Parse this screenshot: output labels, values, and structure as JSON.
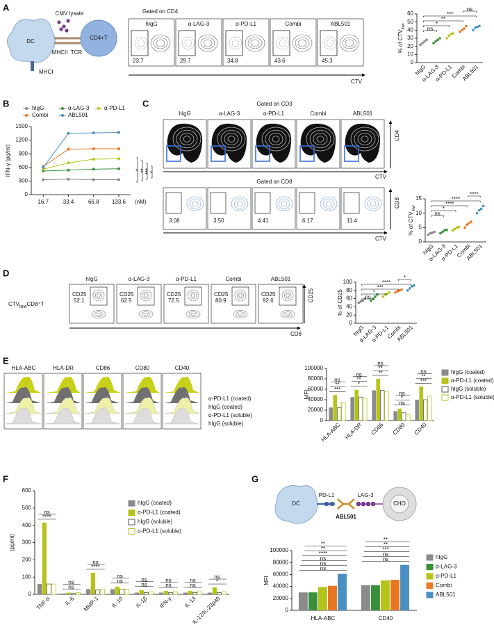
{
  "chart_data": [
    {
      "type": "dot",
      "ylabel": "% of CTV",
      "ylabel_sub": "low",
      "categories": [
        "hIgG",
        "α-LAG-3",
        "α-PD-L1",
        "Combi",
        "ABL501"
      ],
      "values": [
        [
          22,
          24,
          26,
          28
        ],
        [
          24,
          26,
          28,
          30
        ],
        [
          30,
          33,
          35,
          36
        ],
        [
          38,
          40,
          42,
          45
        ],
        [
          40,
          43,
          44,
          45
        ]
      ],
      "colors": [
        "#8a8a8a",
        "#3a8f3a",
        "#b5c41a",
        "#e87722",
        "#4a8fc1"
      ],
      "ylim": [
        0,
        60
      ],
      "yticks": [
        0,
        10,
        20,
        30,
        40,
        50,
        60
      ],
      "annotations": [
        "ns",
        "*",
        "**",
        "***",
        "ns"
      ]
    },
    {
      "type": "line",
      "ylabel": "IFN-γ (pg/ml)",
      "x_unit": "(nM)",
      "x": [
        16.7,
        33.4,
        66.8,
        133.6
      ],
      "xlim": [
        12,
        185
      ],
      "xticks": [
        16.7,
        33.4,
        66.8,
        133.6
      ],
      "xlog": true,
      "ylim": [
        0,
        1500
      ],
      "yticks": [
        0,
        300,
        600,
        900,
        1200,
        1500
      ],
      "series": [
        {
          "name": "hIgG",
          "color": "#8a8a8a",
          "values": [
            330,
            340,
            330,
            330
          ]
        },
        {
          "name": "α-LAG-3",
          "color": "#3a8f3a",
          "values": [
            520,
            540,
            560,
            570
          ]
        },
        {
          "name": "α-PD-L1",
          "color": "#b5c41a",
          "values": [
            560,
            700,
            780,
            790
          ]
        },
        {
          "name": "Combi",
          "color": "#e87722",
          "values": [
            620,
            1000,
            1010,
            1010
          ]
        },
        {
          "name": "ABL501",
          "color": "#4a8fc1",
          "values": [
            600,
            1350,
            1360,
            1370
          ]
        }
      ],
      "annotations": [
        "*",
        "**",
        "***",
        "*"
      ]
    },
    {
      "type": "dot",
      "ylabel": "% of CTV",
      "ylabel_sub": "low",
      "categories": [
        "hIgG",
        "α-LAG-3",
        "α-PD-L1",
        "Combi",
        "ABL501"
      ],
      "values": [
        [
          2.5,
          3,
          3.2,
          3.5
        ],
        [
          3,
          3.5,
          4,
          4.2
        ],
        [
          4,
          4.5,
          5,
          5.2
        ],
        [
          5,
          6,
          6.5,
          7
        ],
        [
          10,
          11,
          11.5,
          12.5
        ]
      ],
      "colors": [
        "#8a8a8a",
        "#3a8f3a",
        "#b5c41a",
        "#e87722",
        "#4a8fc1"
      ],
      "ylim": [
        0,
        15
      ],
      "yticks": [
        0,
        5,
        10,
        15
      ],
      "annotations": [
        "ns",
        "*",
        "****",
        "****",
        "****"
      ]
    },
    {
      "type": "dot",
      "ylabel": "% of CD25",
      "categories": [
        "hIgG",
        "α-LAG-3",
        "α-PD-L1",
        "Combi",
        "ABL501"
      ],
      "values": [
        [
          50,
          53,
          55,
          60
        ],
        [
          55,
          60,
          65,
          70
        ],
        [
          65,
          70,
          72,
          75
        ],
        [
          75,
          78,
          80,
          82
        ],
        [
          80,
          85,
          90,
          92
        ]
      ],
      "colors": [
        "#8a8a8a",
        "#3a8f3a",
        "#b5c41a",
        "#e87722",
        "#4a8fc1"
      ],
      "ylim": [
        0,
        100
      ],
      "yticks": [
        0,
        20,
        40,
        60,
        80,
        100
      ],
      "annotations": [
        "ns",
        "*",
        "***",
        "****",
        "*"
      ]
    },
    {
      "type": "bar",
      "ylabel": "MFI",
      "categories": [
        "HLA-ABC",
        "HLA-DR",
        "CD86",
        "CD80",
        "CD40"
      ],
      "ylim": [
        0,
        100000
      ],
      "yticks": [
        0,
        20000,
        40000,
        60000,
        80000,
        100000
      ],
      "series": [
        {
          "name": "hIgG (coated)",
          "color": "#8a8a8a",
          "values": [
            25000,
            45000,
            58000,
            18000,
            40000
          ]
        },
        {
          "name": "α-PD-L1 (coated)",
          "color": "#b5c41a",
          "values": [
            49000,
            59000,
            80000,
            23000,
            65000
          ]
        },
        {
          "name": "hIgG (soluble)",
          "color": "#ffffff",
          "edgecolor": "#555555",
          "values": [
            25000,
            45000,
            58000,
            15000,
            40000
          ]
        },
        {
          "name": "α-PD-L1 (soluble)",
          "color": "#ffffff",
          "edgecolor": "#b5c41a",
          "values": [
            35000,
            43000,
            55000,
            12000,
            47000
          ]
        }
      ],
      "annotations": [
        [
          "***",
          "**",
          "ns"
        ],
        [
          "*",
          "**",
          "ns"
        ],
        [
          "**",
          "**",
          "ns"
        ],
        [
          "ns",
          "*",
          "ns"
        ],
        [
          "***",
          "**",
          "ns"
        ]
      ]
    },
    {
      "type": "bar",
      "ylabel": "[pg/ml]",
      "categories": [
        "TNF-α",
        "IL-6",
        "MMP-1",
        "IL-10",
        "IL-1β",
        "IFN-γ",
        "IL-13",
        "IL-12/IL-23p40"
      ],
      "ylim": [
        0,
        600
      ],
      "yticks": [
        0,
        100,
        200,
        300,
        400,
        500,
        600
      ],
      "series": [
        {
          "name": "hIgG (coated)",
          "color": "#8a8a8a",
          "values": [
            60,
            5,
            30,
            30,
            10,
            10,
            10,
            10
          ]
        },
        {
          "name": "α-PD-L1 (coated)",
          "color": "#b5c41a",
          "values": [
            415,
            10,
            125,
            45,
            25,
            20,
            20,
            40
          ]
        },
        {
          "name": "hIgG (soluble)",
          "color": "#ffffff",
          "edgecolor": "#555555",
          "values": [
            60,
            5,
            25,
            30,
            10,
            10,
            10,
            10
          ]
        },
        {
          "name": "α-PD-L1 (soluble)",
          "color": "#ffffff",
          "edgecolor": "#b5c41a",
          "values": [
            60,
            10,
            30,
            30,
            15,
            15,
            15,
            15
          ]
        }
      ],
      "annotations": [
        [
          "****",
          "ns"
        ],
        [
          "ns",
          "ns"
        ],
        [
          "****",
          "ns"
        ],
        [
          "ns",
          "ns"
        ],
        [
          "ns",
          "ns"
        ],
        [
          "ns",
          "ns"
        ],
        [
          "ns",
          "ns"
        ],
        [
          "*",
          "ns"
        ]
      ]
    },
    {
      "type": "bar",
      "ylabel": "MFI",
      "categories": [
        "HLA-ABC",
        "CD40"
      ],
      "ylim": [
        0,
        100000
      ],
      "yticks": [
        0,
        20000,
        40000,
        60000,
        80000,
        100000
      ],
      "series": [
        {
          "name": "hIgG",
          "color": "#8a8a8a",
          "values": [
            30000,
            42000
          ]
        },
        {
          "name": "α-LAG-3",
          "color": "#3a8f3a",
          "values": [
            30000,
            42000
          ]
        },
        {
          "name": "α-PD-L1",
          "color": "#b5c41a",
          "values": [
            39000,
            50000
          ]
        },
        {
          "name": "Combi",
          "color": "#e87722",
          "values": [
            41000,
            51000
          ]
        },
        {
          "name": "ABL501",
          "color": "#4a8fc1",
          "values": [
            61000,
            76000
          ]
        }
      ],
      "annotations": [
        [
          "ns",
          "ns",
          "ns",
          "****",
          "**",
          "**"
        ],
        [
          "ns",
          "ns",
          "***",
          "**",
          "**"
        ]
      ]
    }
  ],
  "figure": {
    "panel_labels": [
      "A",
      "B",
      "C",
      "D",
      "E",
      "F",
      "G"
    ],
    "A": {
      "cmv": "CMV lysate",
      "dc": "DC",
      "mhcii": "MHCII",
      "tcr": "TCR",
      "tcell": "CD4+T",
      "mhci": "MHCI",
      "gate": "Gated on CD4",
      "groups": [
        "hIgG",
        "α-LAG-3",
        "α-PD-L1",
        "Combi",
        "ABL501"
      ],
      "percents": [
        "23.7",
        "29.7",
        "34.8",
        "43.6",
        "45.3"
      ],
      "x_axis": "CTV"
    },
    "C": {
      "gate_top": "Gated on CD3",
      "gate_bottom": "Gated on CD8",
      "groups": [
        "hIgG",
        "α-LAG-3",
        "α-PD-L1",
        "Combi",
        "ABL501"
      ],
      "percents": [
        "3.08",
        "3.50",
        "4.41",
        "6.17",
        "11.4"
      ],
      "x_axis": "CTV",
      "y_top": "CD4",
      "y_bottom": "CD8"
    },
    "D": {
      "groups": [
        "hIgG",
        "α-LAG-3",
        "α-PD-L1",
        "Combi",
        "ABL501"
      ],
      "marker": "CD25",
      "percents": [
        "52.1",
        "62.5",
        "72.5",
        "80.9",
        "92.6"
      ],
      "row_label": "CTV",
      "row_label_sub": "low",
      "row_label_end": "CD8⁺T",
      "y_axis": "CD25",
      "x_axis": "CD8"
    },
    "E": {
      "markers": [
        "HLA-ABC",
        "HLA-DR",
        "CD86",
        "CD80",
        "CD40"
      ],
      "legend": [
        "α-PD-L1 (coated)",
        "hIgG (coated)",
        "α-PD-L1 (soluble)",
        "hIgG (soluble)"
      ]
    },
    "G": {
      "dc": "DC",
      "pdl1": "PD-L1",
      "lag3": "LAG-3",
      "abl501": "ABL501",
      "cho": "CHO"
    }
  }
}
